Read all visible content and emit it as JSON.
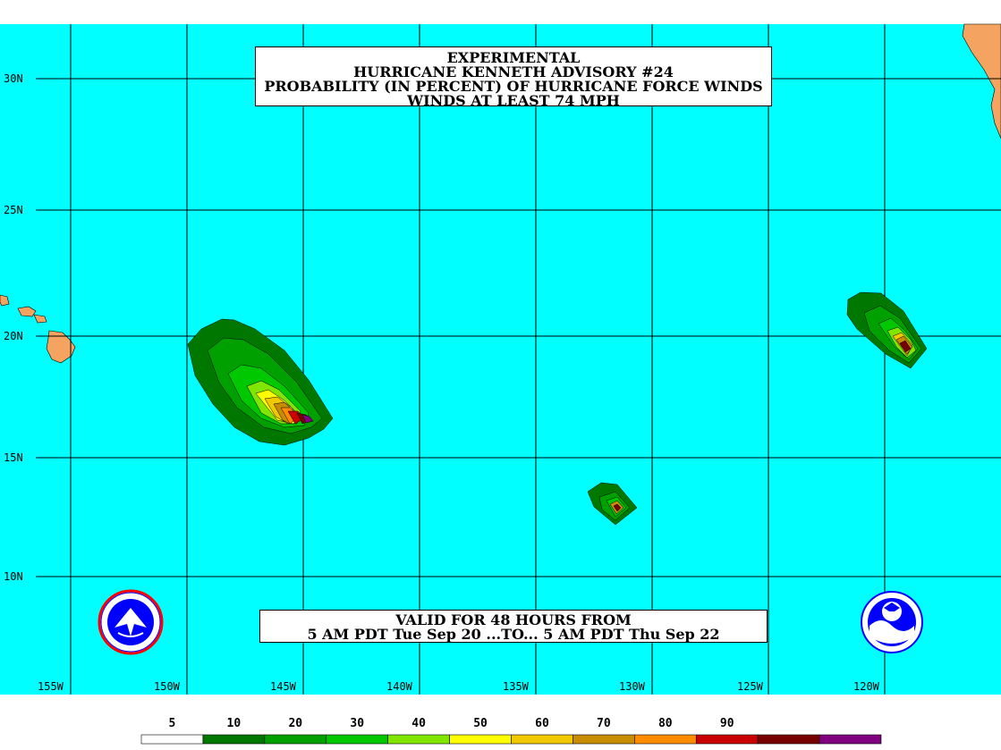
{
  "title": {
    "line1": "EXPERIMENTAL",
    "line2": "HURRICANE KENNETH ADVISORY #24",
    "line3": "PROBABILITY (IN PERCENT) OF HURRICANE FORCE WINDS",
    "line4": "WINDS AT LEAST 74 MPH"
  },
  "valid": {
    "line1": "VALID FOR 48 HOURS FROM",
    "line2": "5 AM PDT Tue Sep 20 ...TO... 5 AM PDT Thu Sep 22"
  },
  "axes": {
    "lat_labels": [
      "30N",
      "25N",
      "20N",
      "15N",
      "10N"
    ],
    "lon_labels": [
      "155W",
      "150W",
      "145W",
      "140W",
      "135W",
      "130W",
      "125W",
      "120W"
    ]
  },
  "legend": {
    "values": [
      "5",
      "10",
      "20",
      "30",
      "40",
      "50",
      "60",
      "70",
      "80",
      "90"
    ],
    "colors": [
      "#ffffff",
      "#007800",
      "#00a000",
      "#00c800",
      "#80e600",
      "#ffff00",
      "#f0c800",
      "#c88c00",
      "#ff8c00",
      "#c80000",
      "#780000",
      "#800080"
    ]
  },
  "colors": {
    "ocean": "#00ffff",
    "land": "#f4a460"
  },
  "logos": {
    "left": "nws-seal",
    "right": "noaa-logo"
  }
}
